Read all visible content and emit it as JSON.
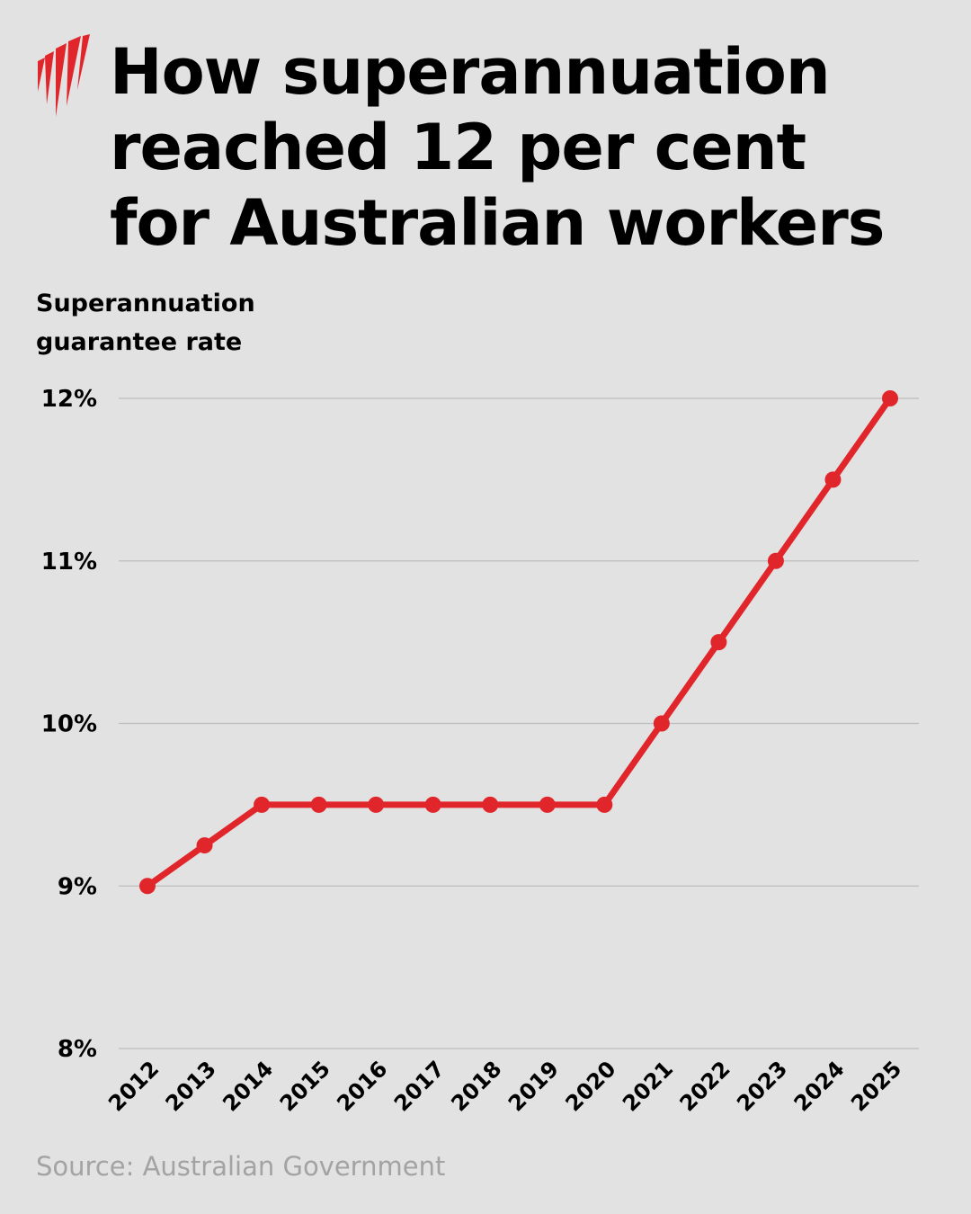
{
  "logo": {
    "icon": "sbs-logo-icon",
    "color": "#e1262b"
  },
  "title": "How superannuation\nreached 12 per cent\nfor Australian workers",
  "source": "Source: Australian Government",
  "colors": {
    "line": "#e1262b",
    "grid": "#bdbdbd",
    "background": "#e2e2e2"
  },
  "chart_data": {
    "type": "line",
    "title": "How superannuation reached 12 per cent for Australian workers",
    "ylabel": "Superannuation\nguarantee rate",
    "xlabel": "",
    "x": [
      "2012",
      "2013",
      "2014",
      "2015",
      "2016",
      "2017",
      "2018",
      "2019",
      "2020",
      "2021",
      "2022",
      "2023",
      "2024",
      "2025"
    ],
    "series": [
      {
        "values": [
          9,
          9.25,
          9.5,
          9.5,
          9.5,
          9.5,
          9.5,
          9.5,
          9.5,
          10,
          10.5,
          11,
          11.5,
          12
        ]
      }
    ],
    "ylim": [
      8,
      12
    ],
    "yticks": [
      {
        "value": 8,
        "label": "8%"
      },
      {
        "value": 9,
        "label": "9%"
      },
      {
        "value": 10,
        "label": "10%"
      },
      {
        "value": 11,
        "label": "11%"
      },
      {
        "value": 12,
        "label": "12%"
      }
    ],
    "grid": true,
    "legend": "none"
  }
}
